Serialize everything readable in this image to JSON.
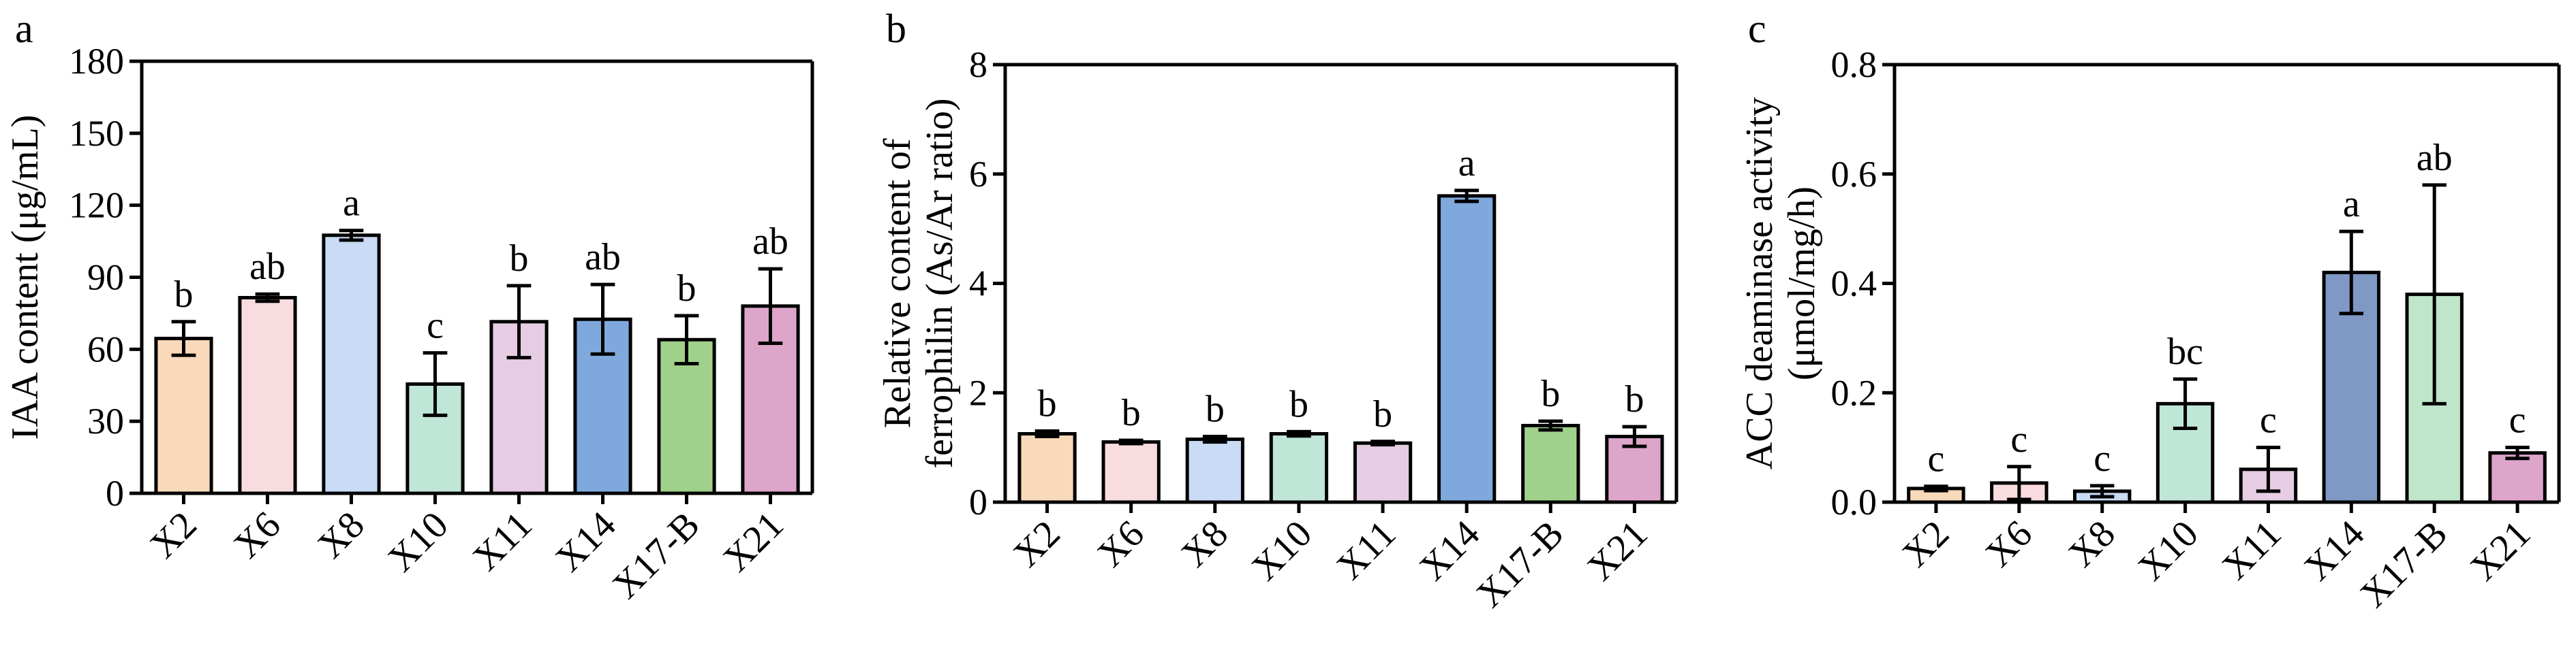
{
  "chart_data": [
    {
      "panel_label": "a",
      "type": "bar",
      "categories": [
        "X2",
        "X6",
        "X8",
        "X10",
        "X11",
        "X14",
        "X17-B",
        "X21"
      ],
      "values": [
        64.5,
        81.5,
        107.5,
        45.5,
        71.5,
        72.5,
        64,
        78
      ],
      "errors": [
        7,
        1.5,
        2,
        13,
        15,
        14.5,
        10,
        15.5
      ],
      "significance": [
        "b",
        "ab",
        "a",
        "c",
        "b",
        "ab",
        "b",
        "ab"
      ],
      "colors": [
        "#f8d9b9",
        "#f9dce0",
        "#c9dbf5",
        "#bfe6d6",
        "#e6cde3",
        "#7fa9dd",
        "#a0d18a",
        "#dea5cb"
      ],
      "title": "",
      "xlabel": "",
      "ylabel": "IAA content (μg/mL)",
      "ylim": [
        0,
        180
      ],
      "yticks": [
        0,
        30,
        60,
        90,
        120,
        150,
        180
      ],
      "grid": false
    },
    {
      "panel_label": "b",
      "type": "bar",
      "categories": [
        "X2",
        "X6",
        "X8",
        "X10",
        "X11",
        "X14",
        "X17-B",
        "X21"
      ],
      "values": [
        1.25,
        1.1,
        1.15,
        1.25,
        1.08,
        5.6,
        1.4,
        1.2
      ],
      "errors": [
        0.05,
        0.03,
        0.05,
        0.04,
        0.03,
        0.1,
        0.08,
        0.18
      ],
      "significance": [
        "b",
        "b",
        "b",
        "b",
        "b",
        "a",
        "b",
        "b"
      ],
      "colors": [
        "#f8d9b9",
        "#f9dce0",
        "#c9dbf5",
        "#bfe6d6",
        "#e6cde3",
        "#7fa9dd",
        "#a0d18a",
        "#dea5cb"
      ],
      "title": "",
      "xlabel": "",
      "ylabel": [
        "Relative content of",
        "ferrophilin (As/Ar ratio)"
      ],
      "ylim": [
        0,
        8
      ],
      "yticks": [
        0,
        2,
        4,
        6,
        8
      ],
      "grid": false
    },
    {
      "panel_label": "c",
      "type": "bar",
      "categories": [
        "X2",
        "X6",
        "X8",
        "X10",
        "X11",
        "X14",
        "X17-B",
        "X21"
      ],
      "values": [
        0.025,
        0.035,
        0.02,
        0.18,
        0.06,
        0.42,
        0.38,
        0.09
      ],
      "errors": [
        0.004,
        0.03,
        0.01,
        0.045,
        0.04,
        0.075,
        0.2,
        0.01
      ],
      "significance": [
        "c",
        "c",
        "c",
        "bc",
        "c",
        "a",
        "ab",
        "c"
      ],
      "colors": [
        "#f8d9b9",
        "#f9dce0",
        "#c9dbf5",
        "#bfe6d6",
        "#e6cde3",
        "#7f98c4",
        "#bfe6cb",
        "#dea5cb"
      ],
      "title": "",
      "xlabel": "",
      "ylabel": [
        "ACC deaminase activity",
        "(μmol/mg/h)"
      ],
      "ylim": [
        0,
        0.8
      ],
      "yticks": [
        0,
        0.2,
        0.4,
        0.6,
        0.8
      ],
      "ytick_labels": [
        "0.0",
        "0.2",
        "0.4",
        "0.6",
        "0.8"
      ],
      "grid": false
    }
  ]
}
